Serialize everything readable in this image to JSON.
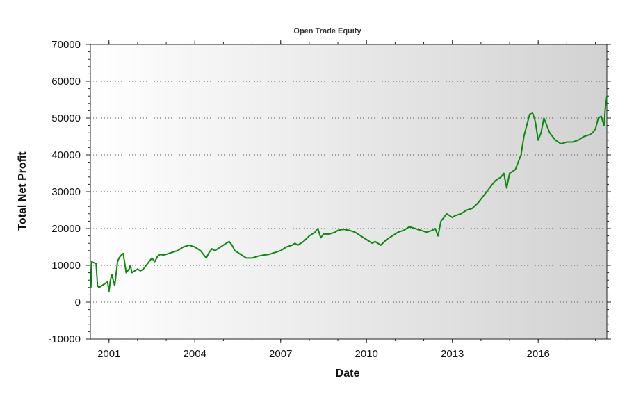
{
  "chart_data": {
    "type": "line",
    "title": "Open Trade Equity",
    "xlabel": "Date",
    "ylabel": "Total Net Profit",
    "x_range": [
      2000.35,
      2018.4
    ],
    "ylim": [
      -10000,
      70000
    ],
    "y_ticks": [
      {
        "value": 70000,
        "label": "70000"
      },
      {
        "value": 60000,
        "label": "60000"
      },
      {
        "value": 50000,
        "label": "50000"
      },
      {
        "value": 40000,
        "label": "40000"
      },
      {
        "value": 30000,
        "label": "30000"
      },
      {
        "value": 20000,
        "label": "20000"
      },
      {
        "value": 10000,
        "label": "10000"
      },
      {
        "value": 0,
        "label": "0"
      },
      {
        "value": -10000,
        "label": "-10000"
      }
    ],
    "x_ticks": [
      {
        "value": 2001,
        "label": "2001"
      },
      {
        "value": 2004,
        "label": "2004"
      },
      {
        "value": 2007,
        "label": "2007"
      },
      {
        "value": 2010,
        "label": "2010"
      },
      {
        "value": 2013,
        "label": "2013"
      },
      {
        "value": 2016,
        "label": "2016"
      }
    ],
    "gridlines": "horizontal dotted",
    "background": "horizontal gradient white to light gray",
    "colors": {
      "line": "#0a8a0a",
      "grid": "#555555"
    },
    "series": [
      {
        "x": [
          2000.37,
          2000.4,
          2000.45,
          2000.55,
          2000.6,
          2000.65,
          2000.75,
          2000.85,
          2000.95,
          2001.0,
          2001.05,
          2001.1,
          2001.15,
          2001.2,
          2001.3,
          2001.35,
          2001.45,
          2001.5,
          2001.6,
          2001.7,
          2001.75,
          2001.8,
          2001.9,
          2002.0,
          2002.1,
          2002.2,
          2002.3,
          2002.5,
          2002.6,
          2002.7,
          2002.8,
          2002.9,
          2003.0,
          2003.2,
          2003.4,
          2003.6,
          2003.8,
          2004.0,
          2004.2,
          2004.4,
          2004.5,
          2004.6,
          2004.7,
          2004.9,
          2005.1,
          2005.2,
          2005.3,
          2005.4,
          2005.6,
          2005.8,
          2006.0,
          2006.2,
          2006.4,
          2006.6,
          2006.8,
          2007.0,
          2007.2,
          2007.4,
          2007.5,
          2007.6,
          2007.8,
          2008.0,
          2008.2,
          2008.3,
          2008.4,
          2008.5,
          2008.7,
          2008.9,
          2009.0,
          2009.2,
          2009.4,
          2009.6,
          2009.8,
          2010.0,
          2010.2,
          2010.3,
          2010.5,
          2010.7,
          2010.9,
          2011.1,
          2011.3,
          2011.5,
          2011.7,
          2011.9,
          2012.1,
          2012.3,
          2012.4,
          2012.5,
          2012.6,
          2012.7,
          2012.8,
          2012.9,
          2013.0,
          2013.1,
          2013.3,
          2013.5,
          2013.7,
          2013.9,
          2014.1,
          2014.3,
          2014.5,
          2014.7,
          2014.8,
          2014.9,
          2015.0,
          2015.2,
          2015.4,
          2015.5,
          2015.6,
          2015.7,
          2015.8,
          2015.9,
          2016.0,
          2016.1,
          2016.2,
          2016.3,
          2016.4,
          2016.5,
          2016.6,
          2016.8,
          2017.0,
          2017.2,
          2017.4,
          2017.6,
          2017.8,
          2017.9,
          2018.0,
          2018.1,
          2018.2,
          2018.3,
          2018.35,
          2018.4
        ],
        "y": [
          4000,
          11000,
          10800,
          10500,
          4500,
          4000,
          4500,
          5000,
          5500,
          3000,
          6000,
          7500,
          6000,
          4500,
          11000,
          12000,
          13000,
          13200,
          8000,
          9000,
          10000,
          8000,
          8500,
          9000,
          8500,
          9000,
          10000,
          12000,
          11000,
          12500,
          13000,
          12800,
          13000,
          13500,
          14000,
          15000,
          15500,
          15000,
          14000,
          12000,
          13500,
          14500,
          14000,
          15000,
          16000,
          16500,
          15500,
          14000,
          13000,
          12000,
          12000,
          12500,
          12800,
          13000,
          13500,
          14000,
          15000,
          15500,
          16000,
          15500,
          16500,
          18000,
          19000,
          20000,
          17500,
          18500,
          18500,
          19000,
          19500,
          19800,
          19500,
          19000,
          18000,
          17000,
          16000,
          16500,
          15500,
          17000,
          18000,
          19000,
          19500,
          20500,
          20000,
          19500,
          19000,
          19500,
          20000,
          18000,
          22000,
          23000,
          24000,
          23500,
          23000,
          23500,
          24000,
          25000,
          25500,
          27000,
          29000,
          31000,
          33000,
          34000,
          35000,
          31000,
          35000,
          36000,
          40000,
          45000,
          48000,
          51000,
          51500,
          49000,
          44000,
          46000,
          50000,
          48000,
          46000,
          45000,
          44000,
          43000,
          43500,
          43500,
          44000,
          45000,
          45500,
          46000,
          47000,
          50000,
          50500,
          48000,
          53000,
          56000
        ]
      }
    ]
  }
}
